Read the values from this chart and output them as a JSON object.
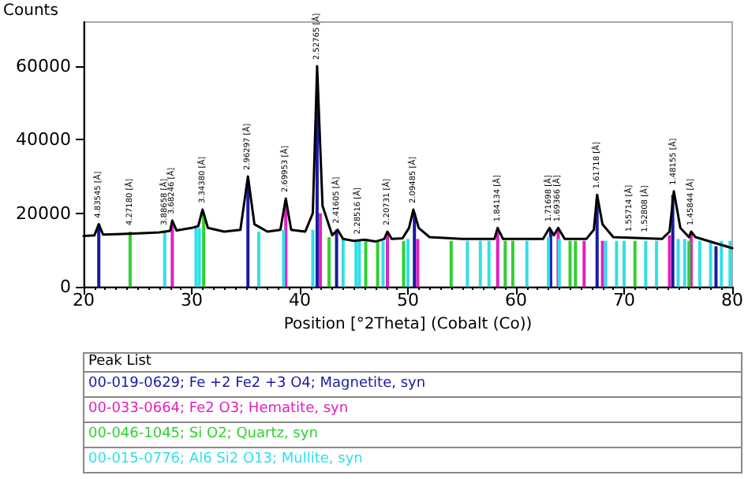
{
  "chart_data": {
    "type": "line",
    "ylabel": "Counts",
    "xlabel": "Position [°2Theta] (Cobalt (Co))",
    "legend_title": "Peak List",
    "legend": "bottom",
    "xlim": [
      20,
      80
    ],
    "ylim": [
      0,
      72000
    ],
    "xticks": [
      20,
      30,
      40,
      50,
      60,
      70,
      80
    ],
    "yticks": [
      0,
      20000,
      40000,
      60000
    ],
    "grid": false,
    "marker": "none",
    "series": [
      {
        "color": "#000000",
        "x": [
          20,
          21,
          21.4,
          21.8,
          23,
          25,
          27,
          28,
          28.2,
          28.6,
          30,
          30.6,
          31,
          31.5,
          33,
          34.5,
          35.2,
          35.8,
          37,
          38.2,
          38.7,
          39.2,
          40.5,
          41.2,
          41.6,
          42.1,
          43,
          43.5,
          44,
          45,
          46,
          47,
          47.8,
          48.1,
          48.5,
          49.5,
          50.1,
          50.5,
          51,
          52,
          55,
          58,
          58.3,
          58.8,
          62.5,
          63.1,
          63.5,
          63.9,
          64.5,
          66.5,
          67.2,
          67.5,
          68,
          69,
          72,
          73.5,
          74.2,
          74.6,
          75.2,
          76,
          76.2,
          76.6,
          80
        ],
        "values": [
          13800,
          14000,
          17000,
          14200,
          14300,
          14500,
          14800,
          15200,
          18000,
          15300,
          16000,
          16500,
          21000,
          16000,
          15000,
          15500,
          30000,
          17000,
          15000,
          15500,
          24000,
          15500,
          15000,
          20000,
          60000,
          22000,
          14000,
          15500,
          13000,
          12500,
          12800,
          12300,
          13000,
          15000,
          13000,
          13200,
          16000,
          21000,
          16000,
          13500,
          13000,
          13000,
          16000,
          13000,
          13000,
          16000,
          14000,
          16000,
          13000,
          13000,
          15500,
          25000,
          17000,
          13500,
          13200,
          13000,
          15000,
          26000,
          16000,
          13500,
          15000,
          13500,
          10500
        ]
      },
      {
        "type": "bar",
        "name": "00-019-0629; Fe +2 Fe2 +3 O4; Magnetite, syn",
        "color": "#1a1aa0",
        "x": [
          21.4,
          35.2,
          41.6,
          43.4,
          50.6,
          63.2,
          67.5,
          74.5,
          78.5
        ],
        "values": [
          17000,
          29000,
          50000,
          15500,
          20000,
          15500,
          24000,
          25000,
          11000
        ]
      },
      {
        "type": "bar",
        "name": "00-033-0664; Fe2 O3; Hematite, syn",
        "color": "#e020c0",
        "x": [
          28.2,
          38.7,
          41.9,
          48.1,
          50.9,
          58.3,
          63.9,
          66.3,
          68,
          74.2,
          76.2
        ],
        "values": [
          17500,
          23500,
          20000,
          14500,
          13000,
          15500,
          15500,
          12500,
          12500,
          14000,
          14500
        ]
      },
      {
        "type": "bar",
        "name": "00-046-1045; Si O2; Quartz, syn",
        "color": "#30d030",
        "x": [
          24.3,
          31.1,
          42.7,
          46.1,
          47.2,
          49.6,
          54,
          59,
          59.7,
          65,
          65.5,
          71,
          76
        ],
        "values": [
          15000,
          20000,
          13500,
          12500,
          12500,
          12500,
          12500,
          12500,
          12500,
          12500,
          12500,
          12500,
          12500
        ]
      },
      {
        "type": "bar",
        "name": "00-015-0776; Al6 Si2 O13; Mullite, syn",
        "color": "#30e0e8",
        "x": [
          27.5,
          30.4,
          30.7,
          36.2,
          38.5,
          41.2,
          44,
          45.2,
          45.5,
          47.7,
          50,
          55.5,
          56.7,
          57.5,
          61,
          63,
          64,
          68.3,
          69.3,
          70,
          72,
          73,
          75,
          75.6,
          77,
          78,
          79,
          79.8
        ],
        "values": [
          14800,
          16000,
          16000,
          15000,
          15500,
          15500,
          13000,
          12500,
          12500,
          12500,
          13000,
          12500,
          12500,
          12500,
          12500,
          13500,
          13000,
          12500,
          12500,
          12500,
          12500,
          12500,
          13000,
          13000,
          12500,
          12500,
          12500,
          12500
        ]
      }
    ],
    "annotations": [
      {
        "text": "4.83545 [Å]",
        "x": 21.4,
        "y": 17000
      },
      {
        "text": "4.27180 [Å]",
        "x": 24.3,
        "y": 15000
      },
      {
        "text": "3.88658 [Å]",
        "x": 27.5,
        "y": 15000
      },
      {
        "text": "3.68246 [Å]",
        "x": 28.2,
        "y": 18000
      },
      {
        "text": "3.34380 [Å]",
        "x": 31,
        "y": 21000
      },
      {
        "text": "2.96297 [Å]",
        "x": 35.2,
        "y": 30000
      },
      {
        "text": "2.69953 [Å]",
        "x": 38.7,
        "y": 24000
      },
      {
        "text": "2.52765 [Å]",
        "x": 41.6,
        "y": 60000
      },
      {
        "text": "2.41605 [Å]",
        "x": 43.4,
        "y": 15500
      },
      {
        "text": "2.28516 [Å]",
        "x": 45.4,
        "y": 12600
      },
      {
        "text": "2.20731 [Å]",
        "x": 48.1,
        "y": 15000
      },
      {
        "text": "2.09485 [Å]",
        "x": 50.5,
        "y": 21000
      },
      {
        "text": "1.84134 [Å]",
        "x": 58.3,
        "y": 16000
      },
      {
        "text": "1.71698 [Å]",
        "x": 63.1,
        "y": 16000
      },
      {
        "text": "1.69366 [Å]",
        "x": 63.9,
        "y": 16000
      },
      {
        "text": "1.61718 [Å]",
        "x": 67.5,
        "y": 25000
      },
      {
        "text": "1.55714 [Å]",
        "x": 70.5,
        "y": 13300
      },
      {
        "text": "1.52808 [Å]",
        "x": 72,
        "y": 13200
      },
      {
        "text": "1.48155 [Å]",
        "x": 74.6,
        "y": 26000
      },
      {
        "text": "1.45844 [Å]",
        "x": 76.2,
        "y": 15000
      }
    ]
  }
}
